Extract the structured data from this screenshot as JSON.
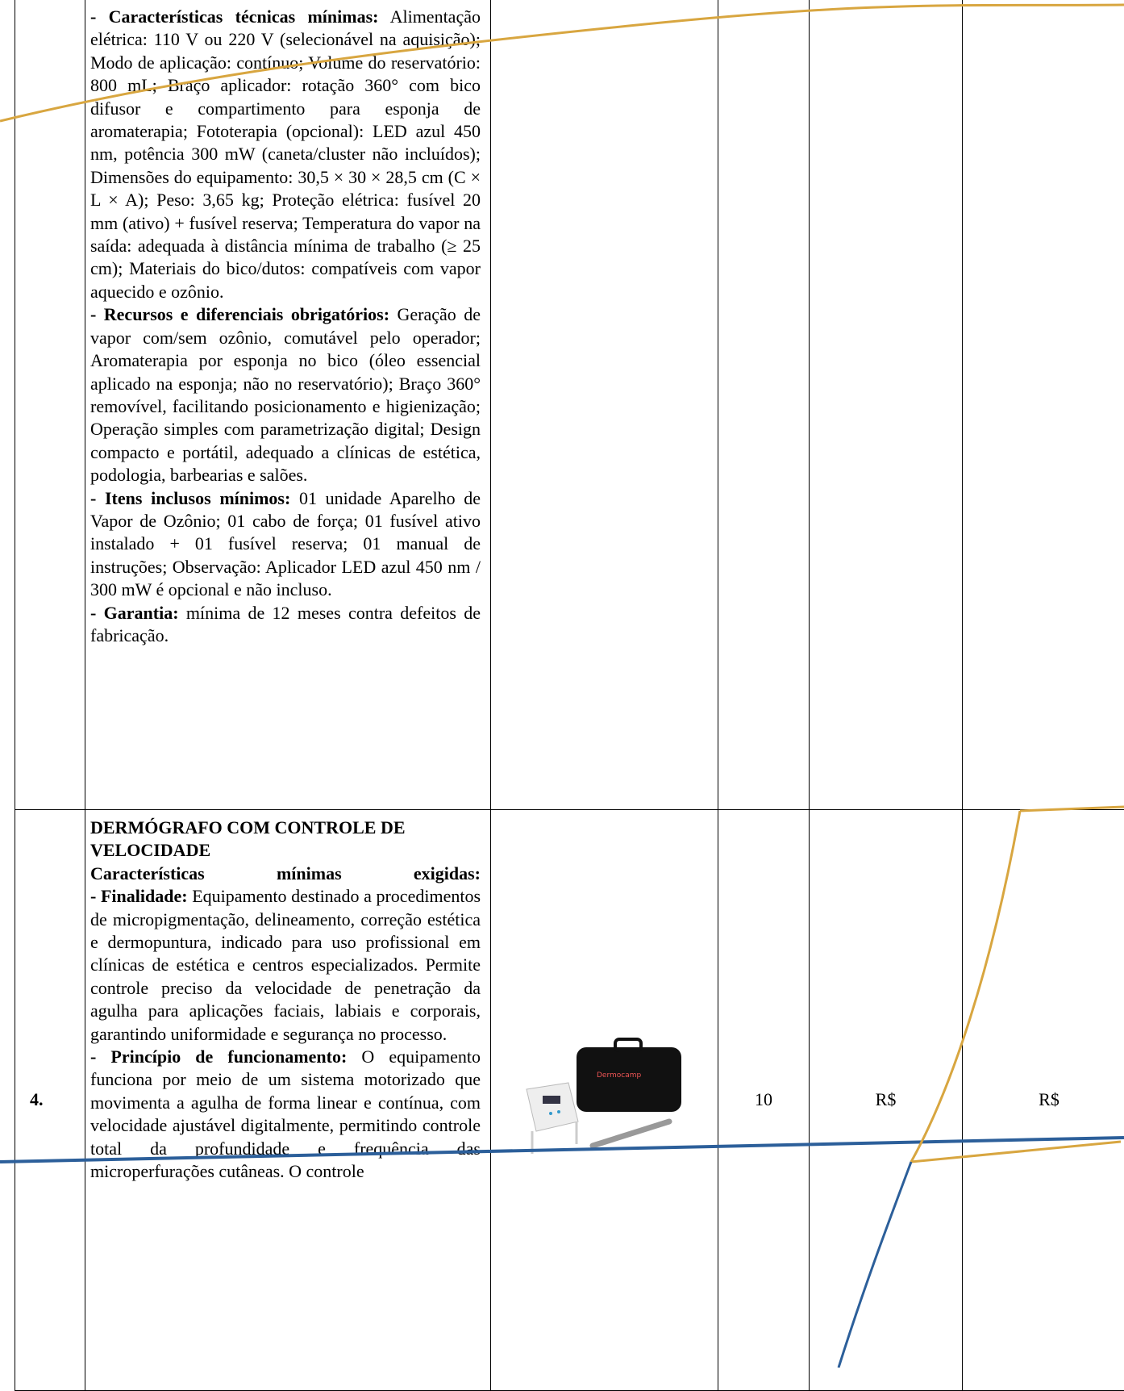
{
  "table": {
    "rows": [
      {
        "number": "",
        "title": "",
        "subtitle": "",
        "sections": [
          {
            "heading": "- Características técnicas mínimas:",
            "body": "Alimentação elétrica: 110 V ou 220 V (selecionável na aquisição); Modo de aplicação: contínuo; Volume do reservatório: 800 mL; Braço aplicador: rotação 360° com bico difusor e compartimento para esponja de aromaterapia; Fototerapia (opcional): LED azul 450 nm, potência 300 mW (caneta/cluster não incluídos); Dimensões do equipamento: 30,5 × 30 × 28,5 cm (C × L × A); Peso: 3,65 kg; Proteção elétrica: fusível 20 mm (ativo) + fusível reserva; Temperatura do vapor na saída: adequada à distância mínima de trabalho (≥ 25 cm); Materiais do bico/dutos: compatíveis com vapor aquecido e ozônio."
          },
          {
            "heading": "- Recursos e diferenciais obrigatórios:",
            "body": "Geração de vapor com/sem ozônio, comutável pelo operador; Aromaterapia por esponja no bico (óleo essencial aplicado na esponja; não no reservatório); Braço 360° removível, facilitando posicionamento e higienização; Operação simples com parametrização digital; Design compacto e portátil, adequado a clínicas de estética, podologia, barbearias e salões."
          },
          {
            "heading": "- Itens inclusos mínimos:",
            "body": "01 unidade Aparelho de Vapor de Ozônio; 01 cabo de força; 01 fusível ativo instalado + 01 fusível reserva; 01 manual de instruções; Observação: Aplicador LED azul 450 nm / 300 mW é opcional e não incluso."
          },
          {
            "heading": "- Garantia:",
            "body": "mínima de 12 meses contra defeitos de fabricação."
          }
        ],
        "quantity": "",
        "unit_price": "",
        "total_price": ""
      },
      {
        "number": "4.",
        "title": "DERMÓGRAFO COM CONTROLE DE VELOCIDADE",
        "subtitle": "Características mínimas exigidas:",
        "sections": [
          {
            "heading": "- Finalidade:",
            "body": "Equipamento destinado a procedimentos de micropigmentação, delineamento, correção estética e dermopuntura, indicado para uso profissional em clínicas de estética e centros especializados. Permite controle preciso da velocidade de penetração da agulha para aplicações faciais, labiais e corporais, garantindo uniformidade e segurança no processo."
          },
          {
            "heading": "- Princípio de funcionamento:",
            "body": "O equipamento funciona por meio de um sistema motorizado que movimenta a agulha de forma linear e contínua, com velocidade ajustável digitalmente, permitindo controle total da profundidade e frequência das microperfurações cutâneas. O controle"
          }
        ],
        "quantity": "10",
        "unit_price": "R$",
        "total_price": "R$"
      }
    ]
  }
}
